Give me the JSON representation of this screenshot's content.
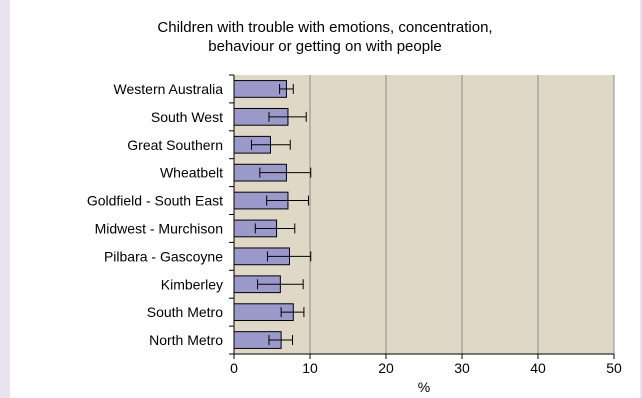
{
  "chart_data": {
    "type": "bar",
    "orientation": "horizontal",
    "title_lines": [
      "Children with trouble with emotions, concentration,",
      "behaviour or getting on with people"
    ],
    "xlabel": "%",
    "ylabel": "",
    "xlim": [
      0,
      50
    ],
    "xticks": [
      0,
      10,
      20,
      30,
      40,
      50
    ],
    "grid": true,
    "legend": "none",
    "categories": [
      "Western Australia",
      "South West",
      "Great Southern",
      "Wheatbelt",
      "Goldfield - South East",
      "Midwest - Murchison",
      "Pilbara - Gascoyne",
      "Kimberley",
      "South Metro",
      "North Metro"
    ],
    "values": [
      6.9,
      7.1,
      4.8,
      6.9,
      7.1,
      5.6,
      7.3,
      6.1,
      7.8,
      6.2
    ],
    "error_low": [
      6.0,
      4.6,
      2.3,
      3.4,
      4.3,
      2.8,
      4.4,
      3.1,
      6.2,
      4.6
    ],
    "error_high": [
      7.8,
      9.5,
      7.4,
      10.1,
      9.8,
      8.0,
      10.1,
      9.1,
      9.2,
      7.7
    ],
    "colors": {
      "bar_fill": "#9b99c9",
      "bar_stroke": "#000000",
      "plot_background": "#e0d8c6",
      "grid": "#8c8c8c",
      "outer_background": "#e9e4ef"
    }
  }
}
